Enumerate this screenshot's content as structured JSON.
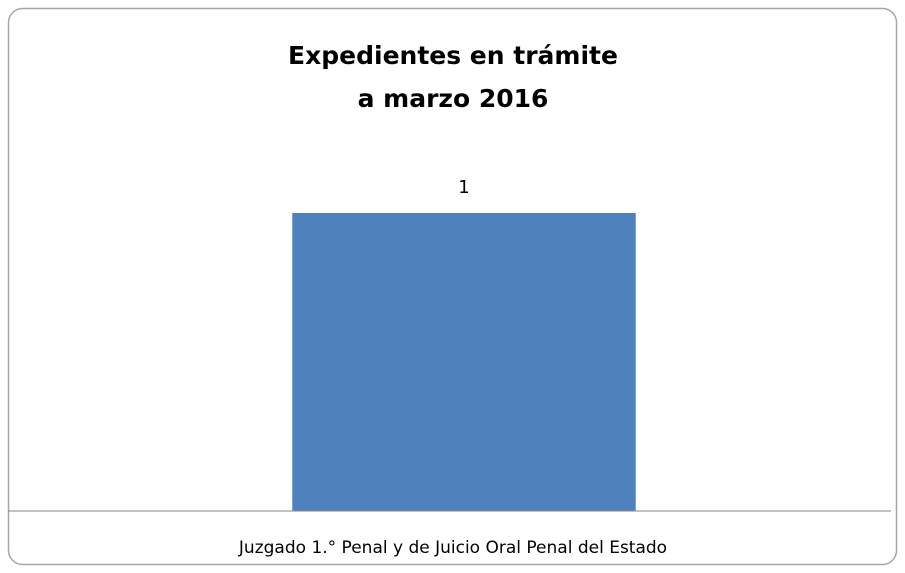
{
  "chart_data": {
    "type": "bar",
    "title": [
      "Expedientes en trámite",
      "a marzo 2016"
    ],
    "categories": [
      "Juzgado 1.° Penal y de Juicio Oral Penal del Estado"
    ],
    "values": [
      1
    ],
    "color": "#4f81bd",
    "ylim": [
      0,
      1.2
    ]
  }
}
